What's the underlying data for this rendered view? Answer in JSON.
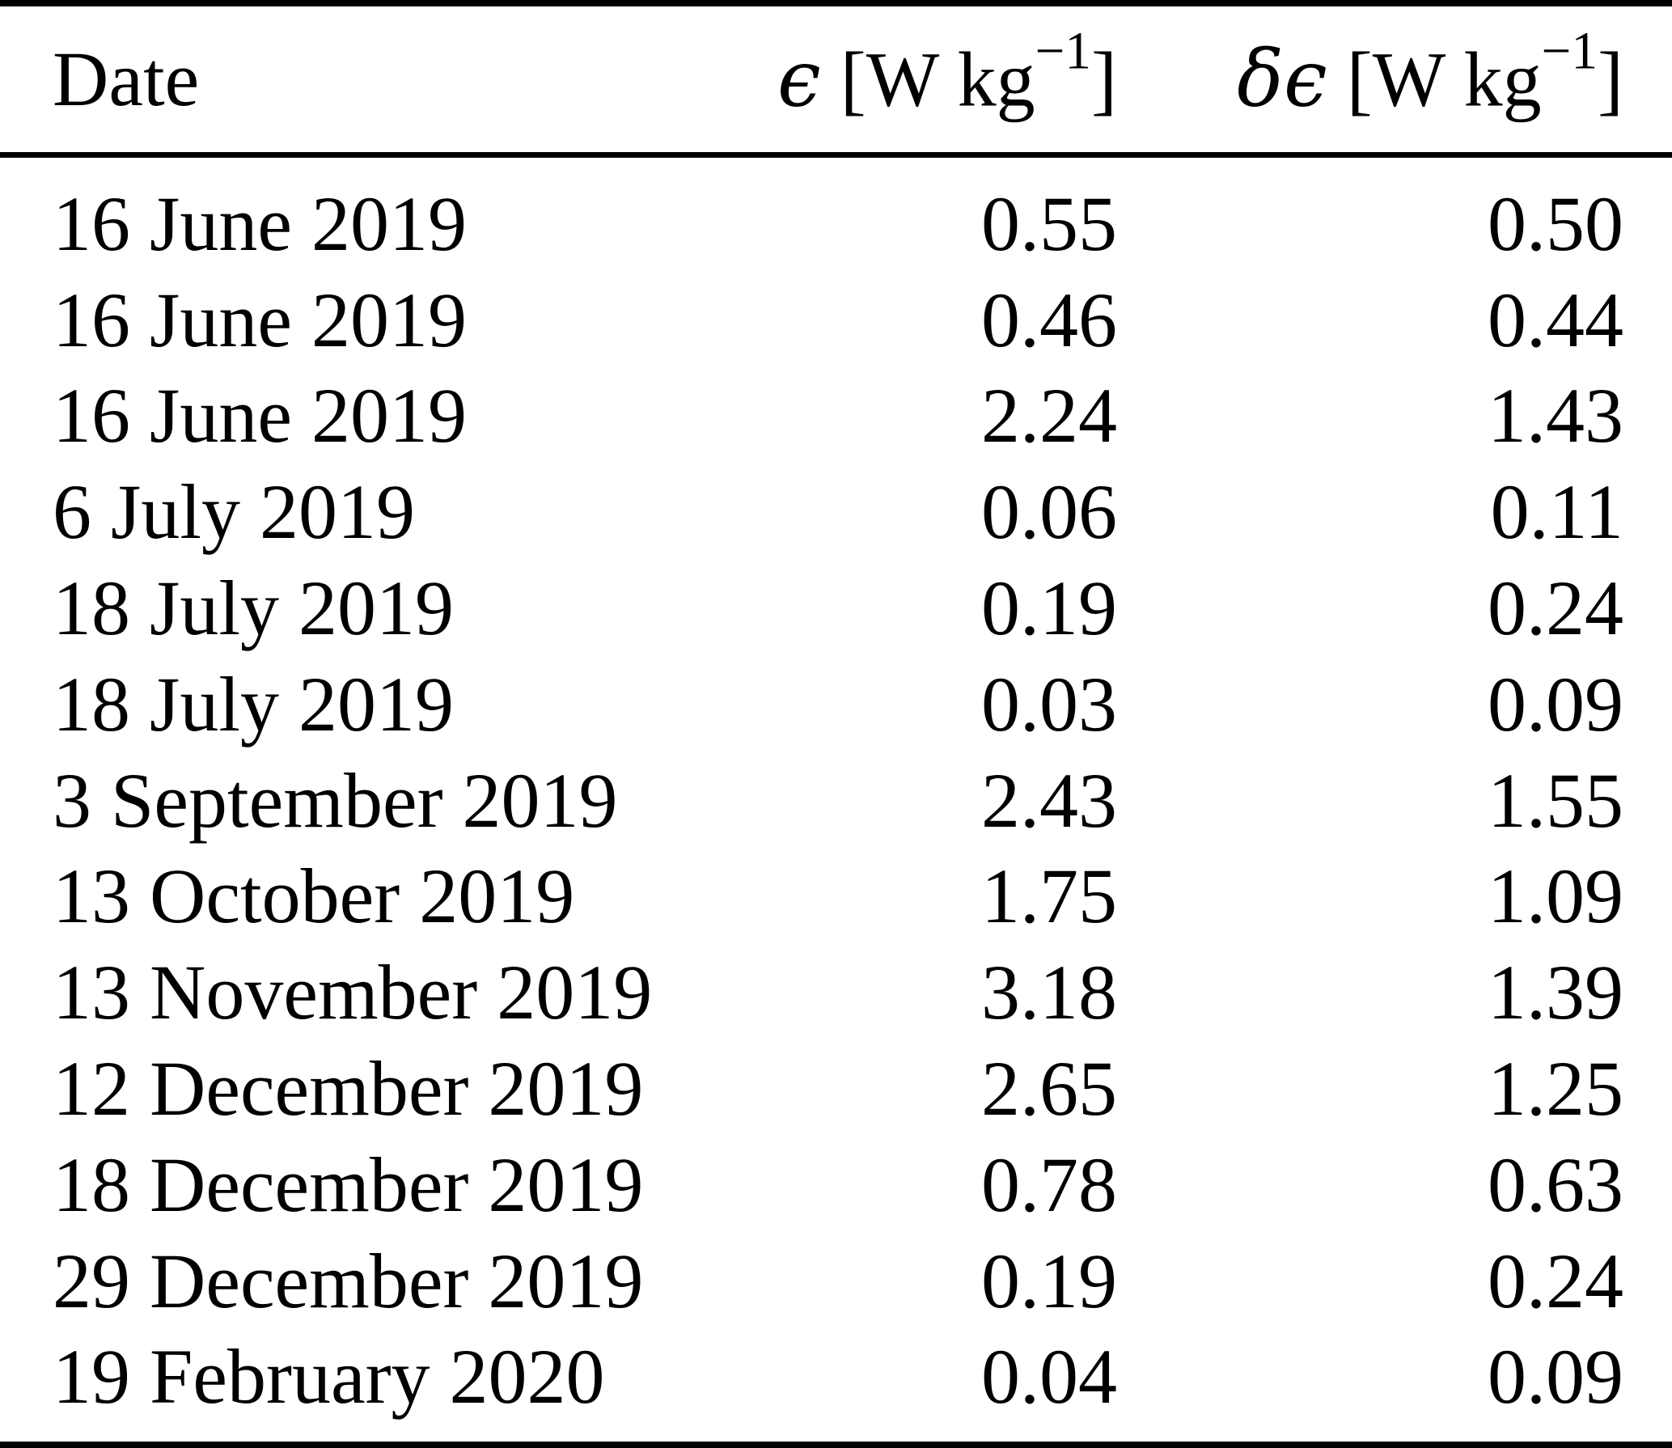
{
  "colors": {
    "background": "#ffffff",
    "text": "#000000",
    "rule": "#000000"
  },
  "table": {
    "header": {
      "date": "Date",
      "eps_symbol": "ϵ",
      "deps_symbol": "δϵ",
      "unit_open": " [W kg",
      "unit_sup": "−1",
      "unit_close": "]"
    },
    "rows": [
      {
        "date": "16 June 2019",
        "eps": "0.55",
        "deps": "0.50"
      },
      {
        "date": "16 June 2019",
        "eps": "0.46",
        "deps": "0.44"
      },
      {
        "date": "16 June 2019",
        "eps": "2.24",
        "deps": "1.43"
      },
      {
        "date": "6 July 2019",
        "eps": "0.06",
        "deps": "0.11"
      },
      {
        "date": "18 July 2019",
        "eps": "0.19",
        "deps": "0.24"
      },
      {
        "date": "18 July 2019",
        "eps": "0.03",
        "deps": "0.09"
      },
      {
        "date": "3 September 2019",
        "eps": "2.43",
        "deps": "1.55"
      },
      {
        "date": "13 October 2019",
        "eps": "1.75",
        "deps": "1.09"
      },
      {
        "date": "13 November 2019",
        "eps": "3.18",
        "deps": "1.39"
      },
      {
        "date": "12 December 2019",
        "eps": "2.65",
        "deps": "1.25"
      },
      {
        "date": "18 December 2019",
        "eps": "0.78",
        "deps": "0.63"
      },
      {
        "date": "29 December 2019",
        "eps": "0.19",
        "deps": "0.24"
      },
      {
        "date": "19 February 2020",
        "eps": "0.04",
        "deps": "0.09"
      }
    ]
  }
}
